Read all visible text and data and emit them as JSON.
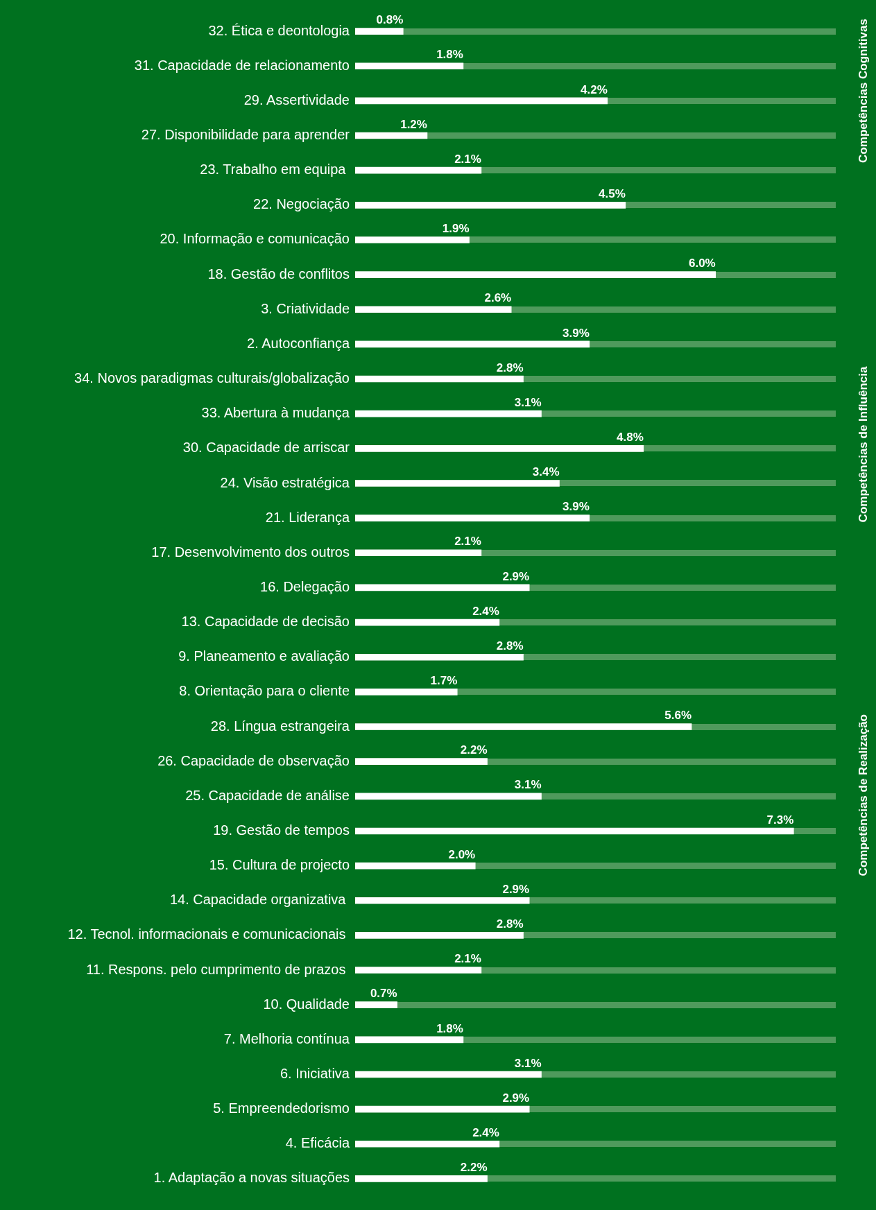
{
  "chart_data": {
    "type": "bar",
    "orientation": "horizontal",
    "grid": false,
    "legend": false,
    "tick_labels": "y",
    "value_labels": [
      "0.8%",
      "1.8%",
      "4.2%",
      "1.2%",
      "2.1%",
      "4.5%",
      "1.9%",
      "6.0%",
      "2.6%",
      "3.9%",
      "2.8%",
      "3.1%",
      "4.8%",
      "3.4%",
      "3.9%",
      "2.1%",
      "2.9%",
      "2.4%",
      "2.8%",
      "1.7%",
      "5.6%",
      "2.2%",
      "3.1%",
      "7.3%",
      "2.0%",
      "2.9%",
      "2.8%",
      "2.1%",
      "0.7%",
      "1.8%",
      "3.1%",
      "2.9%",
      "2.4%",
      "2.2%"
    ],
    "categories": [
      "32. Ética e deontologia",
      "31. Capacidade de relacionamento",
      "29. Assertividade",
      "27. Disponibilidade para aprender",
      "23. Trabalho em equipa ",
      "22. Negociação",
      "20. Informação e comunicação",
      "18. Gestão de conflitos",
      "3. Criatividade",
      "2. Autoconfiança",
      "34. Novos paradigmas culturais/globalização",
      "33. Abertura à mudança",
      "30. Capacidade de arriscar",
      "24. Visão estratégica",
      "21. Liderança",
      "17. Desenvolvimento dos outros",
      "16. Delegação",
      "13. Capacidade de decisão",
      "9. Planeamento e avaliação",
      "8. Orientação para o cliente",
      "28. Língua estrangeira",
      "26. Capacidade de observação",
      "25. Capacidade de análise",
      "19. Gestão de tempos",
      "15. Cultura de projecto",
      "14. Capacidade organizativa ",
      "12. Tecnol. informacionais e comunicacionais ",
      "11. Respons. pelo cumprimento de prazos ",
      "10. Qualidade",
      "7. Melhoria contínua",
      "6. Iniciativa",
      "5. Empreendedorismo",
      "4. Eficácia",
      "1. Adaptação a novas situações"
    ],
    "values": [
      0.8,
      1.8,
      4.2,
      1.2,
      2.1,
      4.5,
      1.9,
      6.0,
      2.6,
      3.9,
      2.8,
      3.1,
      4.8,
      3.4,
      3.9,
      2.1,
      2.9,
      2.4,
      2.8,
      1.7,
      5.6,
      2.2,
      3.1,
      7.3,
      2.0,
      2.9,
      2.8,
      2.1,
      0.7,
      1.8,
      3.1,
      2.9,
      2.4,
      2.2
    ],
    "color": "#ffffff",
    "annotations": [
      "Competências Cognitivas",
      "Competências de Influência",
      "Competências de Realização"
    ]
  }
}
